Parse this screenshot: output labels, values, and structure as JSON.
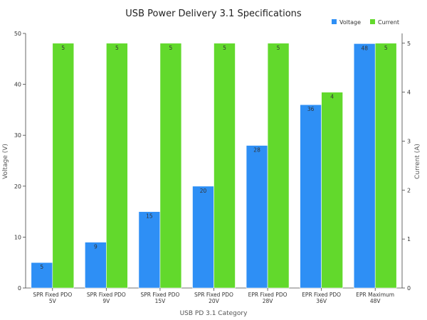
{
  "chart_data": {
    "type": "bar",
    "title": "USB Power Delivery 3.1 Specifications",
    "xlabel": "USB PD 3.1 Category",
    "ylabel_left": "Voltage (V)",
    "ylabel_right": "Current (A)",
    "categories": [
      [
        "SPR Fixed PDO",
        "5V"
      ],
      [
        "SPR Fixed PDO",
        "9V"
      ],
      [
        "SPR Fixed PDO",
        "15V"
      ],
      [
        "SPR Fixed PDO",
        "20V"
      ],
      [
        "EPR Fixed PDO",
        "28V"
      ],
      [
        "EPR Fixed PDO",
        "36V"
      ],
      [
        "EPR Maximum",
        "48V"
      ]
    ],
    "series": [
      {
        "name": "Voltage",
        "axis": "left",
        "color": "#2e8ff5",
        "values": [
          5,
          9,
          15,
          20,
          28,
          36,
          48
        ]
      },
      {
        "name": "Current",
        "axis": "right",
        "color": "#62d92c",
        "values": [
          5,
          5,
          5,
          5,
          5,
          4,
          5
        ]
      }
    ],
    "ylim_left": [
      0,
      50
    ],
    "ylim_right": [
      0,
      5.2
    ],
    "yticks_left": [
      0,
      10,
      20,
      30,
      40,
      50
    ],
    "yticks_right": [
      0,
      1,
      2,
      3,
      4,
      5
    ],
    "legend": "top-right",
    "grid": false
  }
}
